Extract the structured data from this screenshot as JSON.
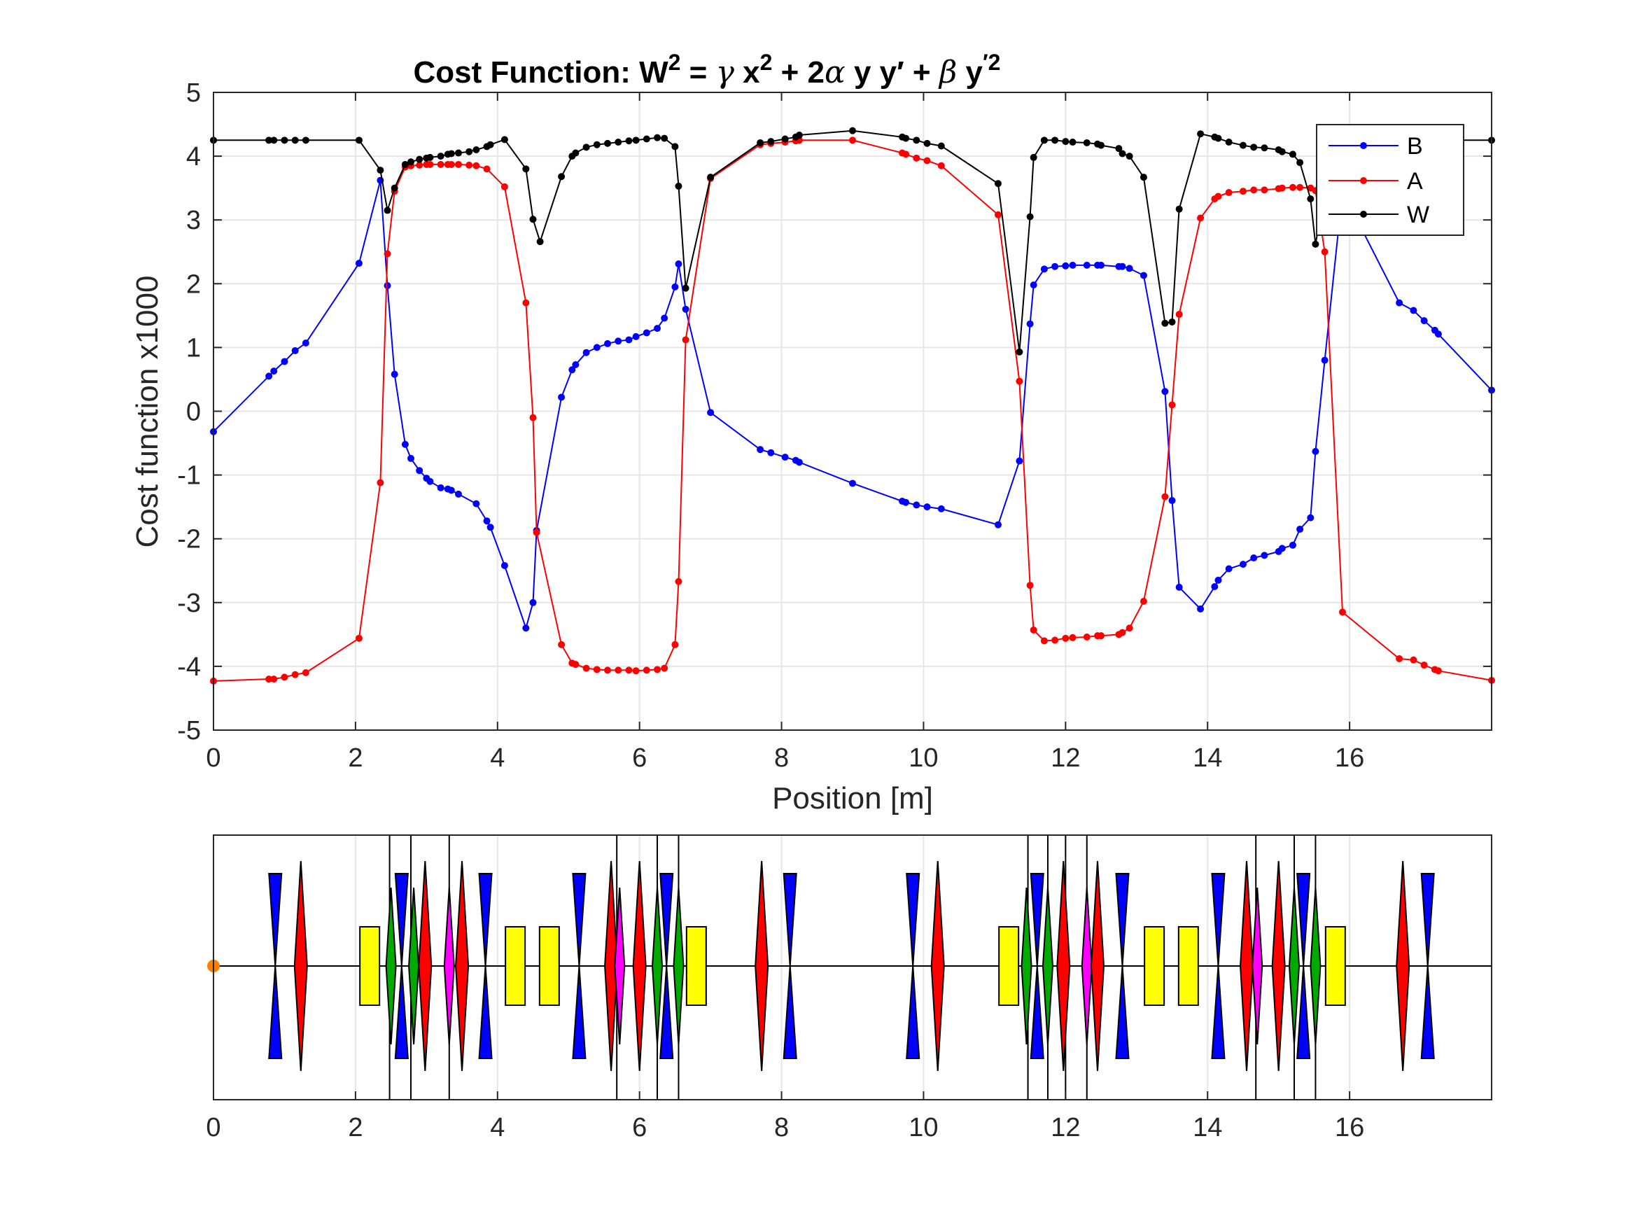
{
  "title": {
    "prefix": "Cost Function: W",
    "sup1": "2",
    "part2": " = ",
    "greek_gamma": "γ",
    "part3": " x",
    "sup2": "2",
    "part4": " + 2",
    "greek_alpha": "α",
    "part5": " y y",
    "prime1": "′",
    "part6": " + ",
    "greek_beta": "β",
    "part7": " y",
    "sup3": "′2"
  },
  "chart_data": [
    {
      "type": "line",
      "xlabel": "Position [m]",
      "ylabel": "Cost function x1000",
      "xlim": [
        0,
        18
      ],
      "ylim": [
        -5,
        5
      ],
      "xticks": [
        0,
        2,
        4,
        6,
        8,
        10,
        12,
        14,
        16
      ],
      "yticks": [
        -5,
        -4,
        -3,
        -2,
        -1,
        0,
        1,
        2,
        3,
        4,
        5
      ],
      "grid": true,
      "legend_position": "top-right",
      "series": [
        {
          "name": "B",
          "color": "#0000ff",
          "x": [
            0,
            0.78,
            0.85,
            1.0,
            1.15,
            1.3,
            2.05,
            2.35,
            2.45,
            2.55,
            2.7,
            2.78,
            2.9,
            3.0,
            3.05,
            3.2,
            3.3,
            3.35,
            3.45,
            3.7,
            3.85,
            3.9,
            4.1,
            4.4,
            4.5,
            4.55,
            4.9,
            5.05,
            5.1,
            5.25,
            5.4,
            5.55,
            5.7,
            5.85,
            5.95,
            6.1,
            6.25,
            6.35,
            6.5,
            6.55,
            6.65,
            7.0,
            7.7,
            7.85,
            8.05,
            8.2,
            8.25,
            9.0,
            9.7,
            9.75,
            9.9,
            10.05,
            10.25,
            11.05,
            11.35,
            11.5,
            11.55,
            11.7,
            11.85,
            12.0,
            12.1,
            12.3,
            12.45,
            12.5,
            12.75,
            12.8,
            12.9,
            13.1,
            13.4,
            13.5,
            13.6,
            13.9,
            14.1,
            14.15,
            14.3,
            14.5,
            14.65,
            14.8,
            15.0,
            15.05,
            15.2,
            15.3,
            15.45,
            15.52,
            15.65,
            15.9,
            16.7,
            16.9,
            17.05,
            17.2,
            17.25,
            18.0
          ],
          "values": [
            -0.32,
            0.55,
            0.63,
            0.78,
            0.95,
            1.07,
            2.32,
            3.62,
            1.97,
            0.58,
            -0.52,
            -0.74,
            -0.93,
            -1.05,
            -1.1,
            -1.2,
            -1.22,
            -1.24,
            -1.3,
            -1.45,
            -1.72,
            -1.82,
            -2.42,
            -3.4,
            -3.0,
            -1.87,
            0.22,
            0.65,
            0.73,
            0.92,
            1.0,
            1.06,
            1.1,
            1.12,
            1.17,
            1.23,
            1.3,
            1.46,
            1.95,
            2.31,
            1.6,
            -0.02,
            -0.6,
            -0.65,
            -0.72,
            -0.77,
            -0.8,
            -1.13,
            -1.41,
            -1.43,
            -1.47,
            -1.5,
            -1.53,
            -1.78,
            -0.78,
            1.37,
            1.98,
            2.23,
            2.27,
            2.28,
            2.29,
            2.29,
            2.29,
            2.29,
            2.27,
            2.27,
            2.24,
            2.13,
            0.31,
            -1.4,
            -2.76,
            -3.1,
            -2.75,
            -2.65,
            -2.47,
            -2.4,
            -2.3,
            -2.26,
            -2.2,
            -2.15,
            -2.1,
            -1.85,
            -1.67,
            -0.63,
            0.8,
            3.45,
            1.7,
            1.58,
            1.42,
            1.27,
            1.21,
            0.33
          ]
        },
        {
          "name": "A",
          "color": "#ff0000",
          "x": [
            0,
            0.78,
            0.85,
            1.0,
            1.15,
            1.3,
            2.05,
            2.35,
            2.45,
            2.55,
            2.7,
            2.78,
            2.9,
            3.0,
            3.05,
            3.2,
            3.3,
            3.35,
            3.45,
            3.6,
            3.7,
            3.85,
            4.1,
            4.4,
            4.5,
            4.55,
            4.9,
            5.05,
            5.1,
            5.25,
            5.4,
            5.55,
            5.7,
            5.85,
            5.95,
            6.1,
            6.25,
            6.35,
            6.5,
            6.55,
            6.65,
            7.0,
            7.7,
            7.85,
            8.05,
            8.2,
            8.25,
            9.0,
            9.7,
            9.75,
            9.9,
            10.05,
            10.25,
            11.05,
            11.35,
            11.5,
            11.55,
            11.7,
            11.85,
            12.0,
            12.1,
            12.3,
            12.45,
            12.5,
            12.75,
            12.8,
            12.9,
            13.1,
            13.4,
            13.5,
            13.6,
            13.9,
            14.1,
            14.15,
            14.3,
            14.5,
            14.65,
            14.8,
            15.0,
            15.05,
            15.2,
            15.3,
            15.45,
            15.52,
            15.65,
            15.9,
            16.7,
            16.9,
            17.05,
            17.2,
            17.25,
            18.0
          ],
          "values": [
            -4.23,
            -4.2,
            -4.2,
            -4.17,
            -4.13,
            -4.1,
            -3.56,
            -1.12,
            2.47,
            3.45,
            3.83,
            3.85,
            3.86,
            3.87,
            3.87,
            3.87,
            3.87,
            3.87,
            3.87,
            3.86,
            3.85,
            3.8,
            3.52,
            1.7,
            -0.1,
            -1.9,
            -3.66,
            -3.95,
            -3.97,
            -4.03,
            -4.05,
            -4.06,
            -4.06,
            -4.06,
            -4.07,
            -4.06,
            -4.05,
            -4.03,
            -3.66,
            -2.67,
            1.12,
            3.65,
            4.18,
            4.2,
            4.22,
            4.24,
            4.25,
            4.25,
            4.05,
            4.03,
            3.97,
            3.93,
            3.85,
            3.08,
            0.47,
            -2.73,
            -3.43,
            -3.6,
            -3.59,
            -3.56,
            -3.55,
            -3.54,
            -3.52,
            -3.52,
            -3.5,
            -3.47,
            -3.4,
            -2.98,
            -1.34,
            0.1,
            1.52,
            3.03,
            3.33,
            3.37,
            3.43,
            3.45,
            3.47,
            3.47,
            3.49,
            3.5,
            3.51,
            3.51,
            3.5,
            3.46,
            2.5,
            -3.15,
            -3.88,
            -3.9,
            -3.98,
            -4.05,
            -4.07,
            -4.22
          ]
        },
        {
          "name": "W",
          "color": "#000000",
          "x": [
            0,
            0.78,
            0.85,
            1.0,
            1.15,
            1.3,
            2.05,
            2.35,
            2.45,
            2.55,
            2.7,
            2.78,
            2.9,
            3.0,
            3.05,
            3.2,
            3.3,
            3.35,
            3.45,
            3.6,
            3.7,
            3.85,
            3.9,
            4.1,
            4.4,
            4.5,
            4.6,
            4.9,
            5.05,
            5.1,
            5.25,
            5.4,
            5.55,
            5.7,
            5.85,
            5.95,
            6.1,
            6.25,
            6.35,
            6.5,
            6.55,
            6.65,
            7.0,
            7.7,
            7.85,
            8.05,
            8.2,
            8.25,
            9.0,
            9.7,
            9.75,
            9.9,
            10.05,
            10.25,
            11.05,
            11.35,
            11.5,
            11.55,
            11.7,
            11.85,
            12.0,
            12.1,
            12.3,
            12.45,
            12.5,
            12.75,
            12.8,
            12.9,
            13.1,
            13.4,
            13.5,
            13.6,
            13.9,
            14.1,
            14.15,
            14.3,
            14.5,
            14.65,
            14.8,
            15.0,
            15.05,
            15.2,
            15.3,
            15.45,
            15.52,
            15.65,
            15.9,
            16.7,
            16.9,
            17.05,
            17.2,
            17.25,
            18.0
          ],
          "values": [
            4.25,
            4.25,
            4.25,
            4.25,
            4.25,
            4.25,
            4.25,
            3.78,
            3.15,
            3.5,
            3.87,
            3.91,
            3.95,
            3.97,
            3.98,
            4.0,
            4.03,
            4.04,
            4.05,
            4.07,
            4.1,
            4.15,
            4.18,
            4.26,
            3.8,
            3.01,
            2.66,
            3.68,
            4.0,
            4.05,
            4.14,
            4.18,
            4.2,
            4.22,
            4.24,
            4.25,
            4.27,
            4.29,
            4.28,
            4.15,
            3.53,
            1.93,
            3.67,
            4.21,
            4.23,
            4.27,
            4.3,
            4.33,
            4.4,
            4.3,
            4.28,
            4.25,
            4.2,
            4.16,
            3.57,
            0.93,
            3.05,
            3.98,
            4.25,
            4.25,
            4.23,
            4.22,
            4.21,
            4.19,
            4.17,
            4.12,
            4.04,
            4.0,
            3.67,
            1.38,
            1.4,
            3.17,
            4.35,
            4.3,
            4.28,
            4.22,
            4.17,
            4.14,
            4.13,
            4.1,
            4.07,
            4.03,
            3.9,
            3.33,
            2.62,
            3.42,
            4.25,
            4.25,
            4.25,
            4.25,
            4.25,
            4.25,
            4.25
          ]
        }
      ]
    },
    {
      "type": "lattice",
      "xlim": [
        0,
        18
      ],
      "xticks": [
        0,
        2,
        4,
        6,
        8,
        10,
        12,
        14,
        16
      ],
      "colors": {
        "quad_focus": "#ff0000",
        "quad_defocus": "#0000ff",
        "dipole": "#ffff00",
        "green_element": "#00aa00",
        "magenta_element": "#ff00ff",
        "source_marker": "#ff8000"
      },
      "markers": [
        2.48,
        2.78,
        3.32,
        5.68,
        6.25,
        6.55,
        11.47,
        11.75,
        12.0,
        12.3,
        14.68,
        15.22,
        15.52
      ],
      "elements": [
        {
          "kind": "defocus",
          "pos": 0.87
        },
        {
          "kind": "focus",
          "pos": 1.23
        },
        {
          "kind": "dipole",
          "pos": 2.2
        },
        {
          "kind": "green",
          "pos": 2.5
        },
        {
          "kind": "defocus",
          "pos": 2.65
        },
        {
          "kind": "green",
          "pos": 2.82
        },
        {
          "kind": "focus",
          "pos": 2.98
        },
        {
          "kind": "magenta",
          "pos": 3.32
        },
        {
          "kind": "focus",
          "pos": 3.5
        },
        {
          "kind": "defocus",
          "pos": 3.83
        },
        {
          "kind": "dipole",
          "pos": 4.25
        },
        {
          "kind": "dipole",
          "pos": 4.73
        },
        {
          "kind": "defocus",
          "pos": 5.15
        },
        {
          "kind": "focus",
          "pos": 5.6
        },
        {
          "kind": "magenta",
          "pos": 5.72
        },
        {
          "kind": "focus",
          "pos": 6.0
        },
        {
          "kind": "green",
          "pos": 6.25
        },
        {
          "kind": "defocus",
          "pos": 6.38
        },
        {
          "kind": "green",
          "pos": 6.55
        },
        {
          "kind": "dipole",
          "pos": 6.8
        },
        {
          "kind": "focus",
          "pos": 7.72
        },
        {
          "kind": "defocus",
          "pos": 8.12
        },
        {
          "kind": "defocus",
          "pos": 9.85
        },
        {
          "kind": "focus",
          "pos": 10.2
        },
        {
          "kind": "dipole",
          "pos": 11.2
        },
        {
          "kind": "green",
          "pos": 11.45
        },
        {
          "kind": "defocus",
          "pos": 11.6
        },
        {
          "kind": "green",
          "pos": 11.75
        },
        {
          "kind": "focus",
          "pos": 11.97
        },
        {
          "kind": "magenta",
          "pos": 12.3
        },
        {
          "kind": "focus",
          "pos": 12.45
        },
        {
          "kind": "defocus",
          "pos": 12.8
        },
        {
          "kind": "dipole",
          "pos": 13.25
        },
        {
          "kind": "dipole",
          "pos": 13.73
        },
        {
          "kind": "defocus",
          "pos": 14.15
        },
        {
          "kind": "focus",
          "pos": 14.55
        },
        {
          "kind": "magenta",
          "pos": 14.7
        },
        {
          "kind": "focus",
          "pos": 15.0
        },
        {
          "kind": "green",
          "pos": 15.22
        },
        {
          "kind": "defocus",
          "pos": 15.35
        },
        {
          "kind": "green",
          "pos": 15.52
        },
        {
          "kind": "dipole",
          "pos": 15.8
        },
        {
          "kind": "focus",
          "pos": 16.75
        },
        {
          "kind": "defocus",
          "pos": 17.1
        }
      ]
    }
  ]
}
